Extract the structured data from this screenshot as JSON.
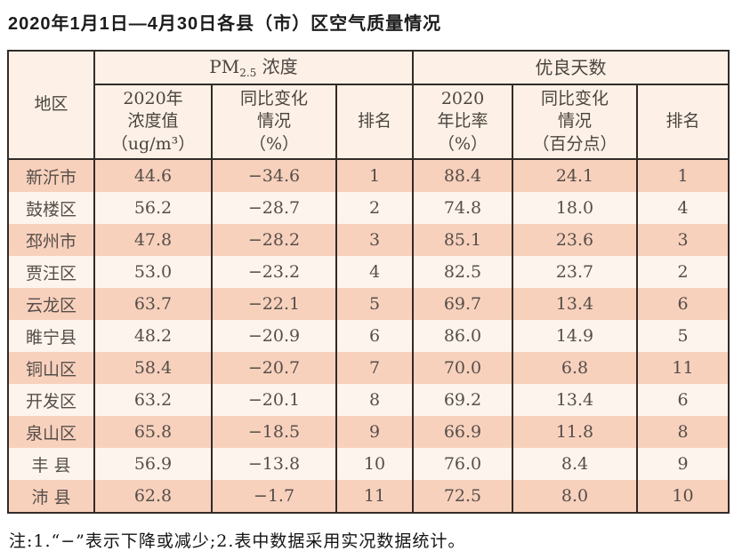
{
  "title": "2020年1月1日—4月30日各县（市）区空气质量情况",
  "table": {
    "header": {
      "region": "地区",
      "pm_group_prefix": "PM",
      "pm_group_sub": "2.5",
      "pm_group_suffix": " 浓度",
      "good_group": "优良天数",
      "pm_value": "2020年\n浓度值\n（ug/m³）",
      "pm_change": "同比变化\n情况\n（%）",
      "pm_rank": "排名",
      "good_rate": "2020\n年比率\n（%）",
      "good_change": "同比变化\n情况\n（百分点）",
      "good_rank": "排名"
    },
    "rows": [
      {
        "region": "新沂市",
        "pm_value": "44.6",
        "pm_change": "−34.6",
        "pm_rank": "1",
        "good_rate": "88.4",
        "good_change": "24.1",
        "good_rank": "1"
      },
      {
        "region": "鼓楼区",
        "pm_value": "56.2",
        "pm_change": "−28.7",
        "pm_rank": "2",
        "good_rate": "74.8",
        "good_change": "18.0",
        "good_rank": "4"
      },
      {
        "region": "邳州市",
        "pm_value": "47.8",
        "pm_change": "−28.2",
        "pm_rank": "3",
        "good_rate": "85.1",
        "good_change": "23.6",
        "good_rank": "3"
      },
      {
        "region": "贾汪区",
        "pm_value": "53.0",
        "pm_change": "−23.2",
        "pm_rank": "4",
        "good_rate": "82.5",
        "good_change": "23.7",
        "good_rank": "2"
      },
      {
        "region": "云龙区",
        "pm_value": "63.7",
        "pm_change": "−22.1",
        "pm_rank": "5",
        "good_rate": "69.7",
        "good_change": "13.4",
        "good_rank": "6"
      },
      {
        "region": "睢宁县",
        "pm_value": "48.2",
        "pm_change": "−20.9",
        "pm_rank": "6",
        "good_rate": "86.0",
        "good_change": "14.9",
        "good_rank": "5"
      },
      {
        "region": "铜山区",
        "pm_value": "58.4",
        "pm_change": "−20.7",
        "pm_rank": "7",
        "good_rate": "70.0",
        "good_change": "6.8",
        "good_rank": "11"
      },
      {
        "region": "开发区",
        "pm_value": "63.2",
        "pm_change": "−20.1",
        "pm_rank": "8",
        "good_rate": "69.2",
        "good_change": "13.4",
        "good_rank": "6"
      },
      {
        "region": "泉山区",
        "pm_value": "65.8",
        "pm_change": "−18.5",
        "pm_rank": "9",
        "good_rate": "66.9",
        "good_change": "11.8",
        "good_rank": "8"
      },
      {
        "region": "丰 县",
        "pm_value": "56.9",
        "pm_change": "−13.8",
        "pm_rank": "10",
        "good_rate": "76.0",
        "good_change": "8.4",
        "good_rank": "9"
      },
      {
        "region": "沛 县",
        "pm_value": "62.8",
        "pm_change": "−1.7",
        "pm_rank": "11",
        "good_rate": "72.5",
        "good_change": "8.0",
        "good_rank": "10"
      }
    ]
  },
  "footnote": "注:1.“−”表示下降或减少;2.表中数据采用实况数据统计。",
  "colors": {
    "row_pink": "#f8d1bd",
    "row_cream": "#fdf4ed",
    "header_bg": "#fdf1e7",
    "border": "#322b27",
    "cell_text": "#554e49",
    "title_text": "#1c1c1c"
  }
}
